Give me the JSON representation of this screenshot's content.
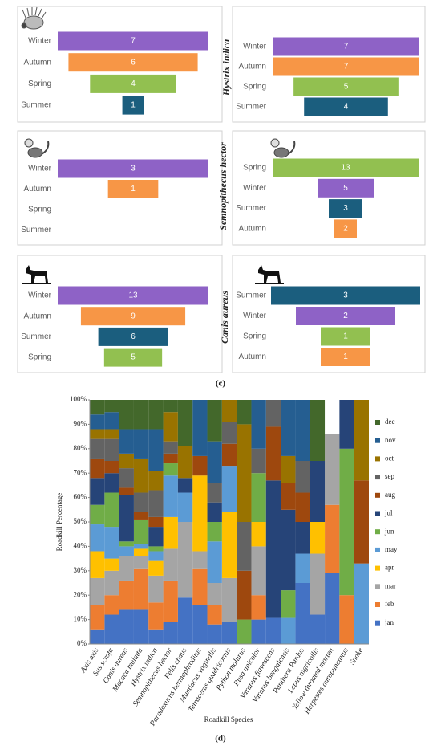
{
  "panel_labels": [
    "(c)",
    "(d)"
  ],
  "chart_data": [
    {
      "type": "funnel",
      "categories": [
        "Winter",
        "Autumn",
        "Spring",
        "Summer"
      ],
      "values": [
        7,
        6,
        4,
        1
      ],
      "colors": [
        "#8e62c6",
        "#f79646",
        "#92c050",
        "#1b5e7e"
      ]
    },
    {
      "type": "funnel",
      "title": "Hystrix indica",
      "categories": [
        "Winter",
        "Autumn",
        "Spring",
        "Summer"
      ],
      "values": [
        7,
        7,
        5,
        4
      ],
      "colors": [
        "#8e62c6",
        "#f79646",
        "#92c050",
        "#1b5e7e"
      ]
    },
    {
      "type": "funnel",
      "categories": [
        "Winter",
        "Autumn",
        "Spring",
        "Summer"
      ],
      "values": [
        3,
        1,
        null,
        null
      ],
      "colors": [
        "#8e62c6",
        "#f79646",
        "#92c050",
        "#1b5e7e"
      ]
    },
    {
      "type": "funnel",
      "title": "Semnopithecus hector",
      "categories": [
        "Spring",
        "Winter",
        "Summer",
        "Autumn"
      ],
      "values": [
        13,
        5,
        3,
        2
      ],
      "colors": [
        "#92c050",
        "#8e62c6",
        "#1b5e7e",
        "#f79646"
      ]
    },
    {
      "type": "funnel",
      "categories": [
        "Winter",
        "Autumn",
        "Summer",
        "Spring"
      ],
      "values": [
        13,
        9,
        6,
        5
      ],
      "colors": [
        "#8e62c6",
        "#f79646",
        "#1b5e7e",
        "#92c050"
      ]
    },
    {
      "type": "funnel",
      "title": "Canis aureus",
      "categories": [
        "Summer",
        "Winter",
        "Spring",
        "Autumn"
      ],
      "values": [
        3,
        2,
        1,
        1
      ],
      "colors": [
        "#1b5e7e",
        "#8e62c6",
        "#92c050",
        "#f79646"
      ]
    },
    {
      "type": "stacked_bar",
      "xlabel": "Roadkill Species",
      "ylabel": "Roadkill Percentage",
      "legend": "right",
      "categories": [
        "Axis axis",
        "Sus scrofa",
        "Canis aureus",
        "Macaca mulatta",
        "Hystrix indica",
        "Semnopithecus hector",
        "Felis chaus",
        "Paradoxurus hermaphroditus",
        "Muntiacus vaginalis",
        "Tetracerus quadricornis",
        "Python molurus",
        "Rusa unicolor",
        "Varanus flavescens",
        "Varanus bengalensis",
        "Panthera Pardus",
        "Lepus nigricollis",
        "Yellow throated marten",
        "Herpestes auropunctatus",
        "Snake"
      ],
      "ylim": [
        0,
        100
      ],
      "yticks": [
        {
          "value": 0,
          "label": "0%"
        },
        {
          "value": 10,
          "label": "10%"
        },
        {
          "value": 20,
          "label": "20%"
        },
        {
          "value": 30,
          "label": "30%"
        },
        {
          "value": 40,
          "label": "40%"
        },
        {
          "value": 50,
          "label": "50%"
        },
        {
          "value": 60,
          "label": "60%"
        },
        {
          "value": 70,
          "label": "70%"
        },
        {
          "value": 80,
          "label": "80%"
        },
        {
          "value": 90,
          "label": "90%"
        },
        {
          "value": 100,
          "label": "100%"
        }
      ],
      "series": [
        {
          "name": "jan",
          "color": "#4472c4",
          "values": [
            6,
            12,
            14,
            14,
            6,
            9,
            19,
            16,
            8,
            9,
            0,
            10,
            11,
            0,
            25,
            12,
            29,
            0,
            0
          ]
        },
        {
          "name": "feb",
          "color": "#ed7d31",
          "values": [
            10,
            8,
            12,
            17,
            11,
            17,
            0,
            15,
            8,
            0,
            0,
            10,
            0,
            0,
            0,
            0,
            28,
            20,
            0
          ]
        },
        {
          "name": "mar",
          "color": "#a5a5a5",
          "values": [
            11,
            10,
            10,
            5,
            11,
            13,
            31,
            7,
            9,
            18,
            0,
            20,
            0,
            0,
            0,
            25,
            29,
            0,
            0
          ]
        },
        {
          "name": "apr",
          "color": "#ffc000",
          "values": [
            11,
            5,
            0,
            3,
            6,
            13,
            0,
            31,
            0,
            27,
            0,
            10,
            0,
            0,
            0,
            13,
            0,
            0,
            0
          ]
        },
        {
          "name": "may",
          "color": "#5b9bd5",
          "values": [
            11,
            13,
            4,
            2,
            4,
            17,
            12,
            0,
            17,
            19,
            0,
            0,
            0,
            11,
            12,
            0,
            0,
            0,
            33
          ]
        },
        {
          "name": "jun",
          "color": "#70ad47",
          "values": [
            8,
            14,
            2,
            10,
            2,
            5,
            0,
            0,
            8,
            0,
            10,
            20,
            0,
            11,
            0,
            0,
            0,
            60,
            0
          ]
        },
        {
          "name": "jul",
          "color": "#264478",
          "values": [
            11,
            8,
            19,
            0,
            8,
            0,
            6,
            0,
            8,
            0,
            0,
            0,
            56,
            33,
            13,
            25,
            0,
            20,
            0
          ]
        },
        {
          "name": "aug",
          "color": "#9e480e",
          "values": [
            8,
            5,
            3,
            3,
            4,
            4,
            0,
            8,
            0,
            9,
            20,
            0,
            22,
            11,
            12,
            0,
            0,
            0,
            34
          ]
        },
        {
          "name": "sep",
          "color": "#636363",
          "values": [
            8,
            9,
            8,
            8,
            11,
            5,
            0,
            0,
            8,
            9,
            20,
            10,
            11,
            0,
            13,
            0,
            0,
            0,
            0
          ]
        },
        {
          "name": "oct",
          "color": "#997300",
          "values": [
            4,
            4,
            6,
            14,
            8,
            12,
            13,
            0,
            0,
            9,
            40,
            0,
            0,
            11,
            0,
            0,
            0,
            0,
            33
          ]
        },
        {
          "name": "nov",
          "color": "#255e91",
          "values": [
            6,
            7,
            10,
            12,
            17,
            0,
            0,
            23,
            17,
            0,
            0,
            20,
            0,
            23,
            25,
            0,
            0,
            0,
            0
          ]
        },
        {
          "name": "dec",
          "color": "#43682b",
          "values": [
            6,
            5,
            12,
            12,
            12,
            5,
            19,
            0,
            17,
            0,
            10,
            0,
            0,
            0,
            0,
            25,
            0,
            0,
            0
          ]
        }
      ]
    }
  ]
}
